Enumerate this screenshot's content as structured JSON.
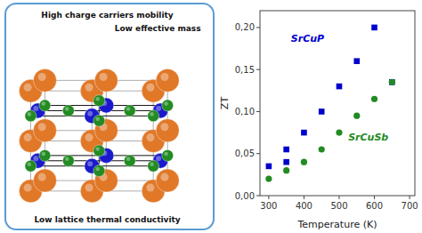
{
  "chart_data": {
    "type": "scatter",
    "annotations": [
      "High charge carriers mobility",
      "Low effective mass",
      "Low lattice thermal conductivity"
    ],
    "x_label": "Temperature (K)",
    "y_label": "ZT",
    "series": [
      {
        "name": "SrCuP",
        "color": "#0000cc",
        "marker": "square",
        "x": [
          300,
          350,
          350,
          400,
          450,
          500,
          550,
          600,
          650
        ],
        "values": [
          0.035,
          0.055,
          0.04,
          0.075,
          0.1,
          0.13,
          0.16,
          0.2,
          0.135
        ]
      },
      {
        "name": "SrCuSb",
        "color": "#228B22",
        "marker": "circle",
        "x": [
          300,
          350,
          400,
          450,
          500,
          550,
          600,
          650
        ],
        "values": [
          0.02,
          0.03,
          0.04,
          0.055,
          0.075,
          0.095,
          0.115,
          0.135
        ]
      }
    ],
    "xlim": [
      275,
      715
    ],
    "ylim": [
      0.0,
      0.22
    ],
    "xticks": [
      300,
      400,
      500,
      600,
      700
    ],
    "yticks": [
      {
        "value": 0.0,
        "label": "0,00"
      },
      {
        "value": 0.05,
        "label": "0,05"
      },
      {
        "value": 0.1,
        "label": "0,10"
      },
      {
        "value": 0.15,
        "label": "0,15"
      },
      {
        "value": 0.2,
        "label": "0,20"
      }
    ],
    "grid": false
  }
}
